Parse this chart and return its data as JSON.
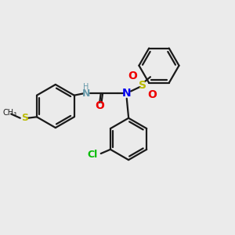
{
  "bg_color": "#ebebeb",
  "line_color": "#1a1a1a",
  "N_color": "#0000ee",
  "O_color": "#ee0000",
  "S_color": "#bbbb00",
  "Cl_color": "#00bb00",
  "NH_color": "#6699aa",
  "line_width": 1.6,
  "fig_w": 3.0,
  "fig_h": 3.0,
  "dpi": 100,
  "xlim": [
    0,
    10
  ],
  "ylim": [
    0,
    10
  ]
}
